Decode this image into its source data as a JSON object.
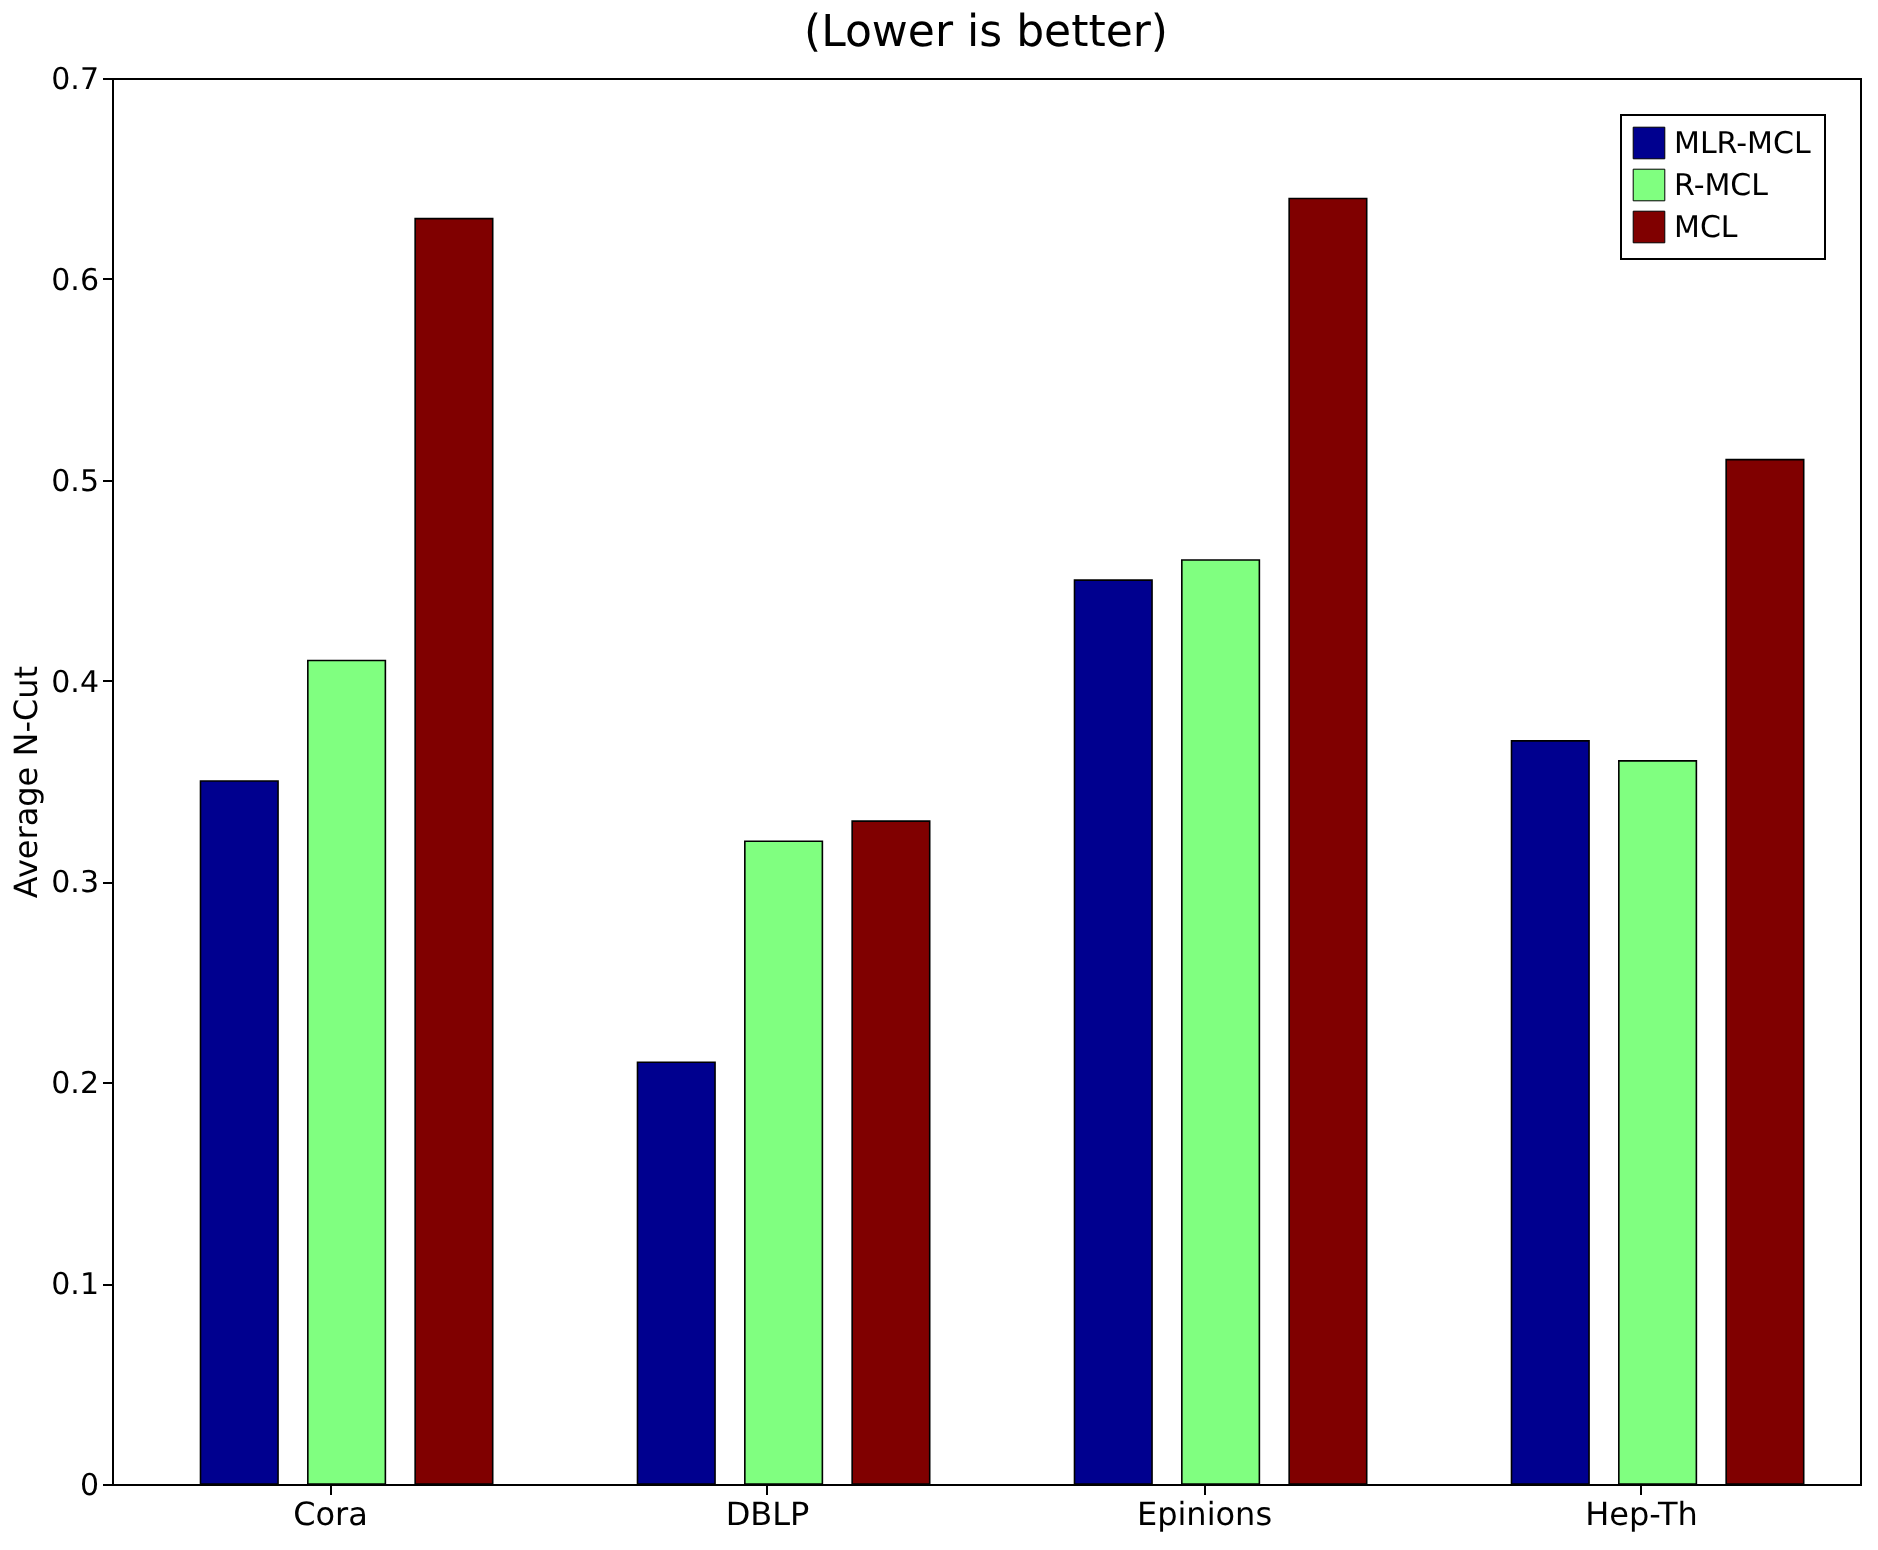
{
  "chart_data": {
    "type": "bar",
    "title": "(Lower is better)",
    "ylabel": "Average N-Cut",
    "categories": [
      "Cora",
      "DBLP",
      "Epinions",
      "Hep-Th"
    ],
    "series": [
      {
        "name": "MLR-MCL",
        "color": "#00008f",
        "values": [
          0.35,
          0.21,
          0.45,
          0.37
        ]
      },
      {
        "name": "R-MCL",
        "color": "#80ff80",
        "values": [
          0.41,
          0.32,
          0.46,
          0.36
        ]
      },
      {
        "name": "MCL",
        "color": "#800000",
        "values": [
          0.63,
          0.33,
          0.64,
          0.51
        ]
      }
    ],
    "ylim": [
      0,
      0.7
    ],
    "yticks": [
      0,
      0.1,
      0.2,
      0.3,
      0.4,
      0.5,
      0.6,
      0.7
    ],
    "grid": false,
    "legend": "top right"
  }
}
